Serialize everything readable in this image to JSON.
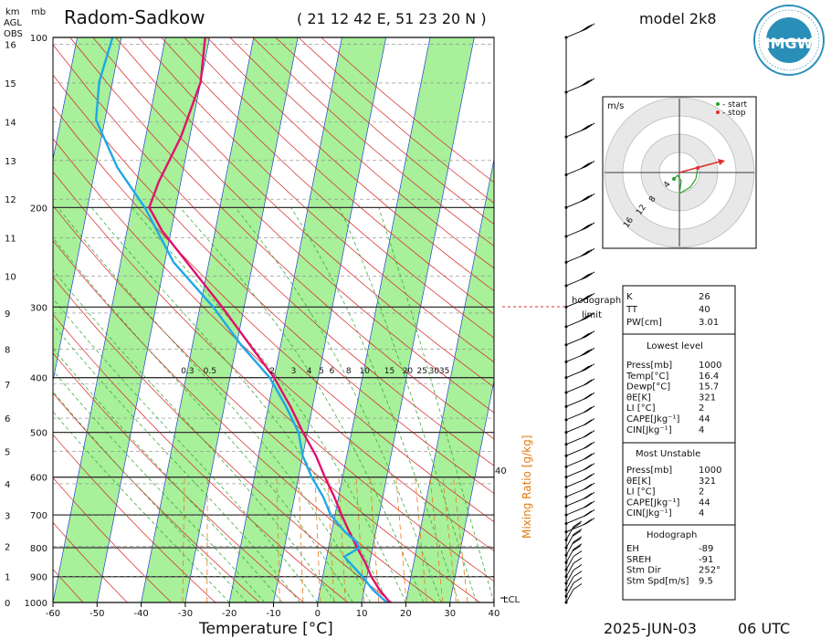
{
  "header": {
    "station": "Radom-Sadkow",
    "coords": "( 21 12 42 E, 51 23 20 N )",
    "model": "model 2k8",
    "date": "2025-JUN-03",
    "time": "06 UTC",
    "logo_text": "IMGW"
  },
  "left_axis": {
    "km_label": "km",
    "mb_label": "mb",
    "agl_label": "AGL",
    "obs_label": "OBS",
    "km_ticks": [
      "16",
      "15",
      "14",
      "13",
      "12",
      "11",
      "10",
      "9",
      "8",
      "7",
      "6",
      "5",
      "4",
      "3",
      "2",
      "1",
      "0"
    ],
    "pressure_ticks": [
      "100",
      "200",
      "300",
      "400",
      "500",
      "600",
      "700",
      "800",
      "900",
      "1000"
    ]
  },
  "x_axis": {
    "label": "Temperature [°C]",
    "ticks": [
      "-60",
      "-50",
      "-40",
      "-30",
      "-20",
      "-10",
      "0",
      "10",
      "20",
      "30",
      "40"
    ]
  },
  "mixing_ratio": {
    "label": "Mixing Ratio [g/kg]",
    "values": [
      "0.3",
      "0.5",
      "2",
      "3",
      "4",
      "5",
      "6",
      "8",
      "10",
      "15",
      "20",
      "25",
      "30",
      "35"
    ],
    "right_value": "40"
  },
  "lcl_label": "LCL",
  "hodograph": {
    "units": "m/s",
    "legend_start": "- start",
    "legend_stop": "- stop",
    "ring_labels": [
      "4",
      "8",
      "12",
      "16"
    ],
    "limit_label_1": "hodograph",
    "limit_label_2": "limit"
  },
  "indices": {
    "top": [
      {
        "name": "K",
        "value": "26"
      },
      {
        "name": "TT",
        "value": "40"
      },
      {
        "name": "PW[cm]",
        "value": "3.01"
      }
    ],
    "lowest_title": "Lowest level",
    "lowest": [
      {
        "name": "Press[mb]",
        "value": "1000"
      },
      {
        "name": "Temp[°C]",
        "value": "16.4"
      },
      {
        "name": "Dewp[°C]",
        "value": "15.7"
      },
      {
        "name": "θE[K]",
        "value": "321"
      },
      {
        "name": "LI [°C]",
        "value": "2"
      },
      {
        "name": "CAPE[Jkg⁻¹]",
        "value": "44"
      },
      {
        "name": "CIN[Jkg⁻¹]",
        "value": "4"
      }
    ],
    "unstable_title": "Most Unstable",
    "unstable": [
      {
        "name": "Press[mb]",
        "value": "1000"
      },
      {
        "name": "θE[K]",
        "value": "321"
      },
      {
        "name": "LI [°C]",
        "value": "2"
      },
      {
        "name": "CAPE[Jkg⁻¹]",
        "value": "44"
      },
      {
        "name": "CIN[Jkg⁻¹]",
        "value": "4"
      }
    ],
    "hodo_title": "Hodograph",
    "hodo": [
      {
        "name": "EH",
        "value": "-89"
      },
      {
        "name": "SREH",
        "value": "-91"
      },
      {
        "name": "Stm Dir",
        "value": "252°"
      },
      {
        "name": "Stm Spd[m/s]",
        "value": "9.5"
      }
    ]
  },
  "colors": {
    "temperature": "#e0106e",
    "dewpoint": "#1fa8e8",
    "green_band": "#a8f09a",
    "dry_adiabat": "#d82020",
    "moist_adiabat": "#2aa02a",
    "mixing_ratio": "#ee7a20",
    "isotherm": "#2040d0"
  },
  "chart_data": {
    "type": "line",
    "xlabel": "Temperature [°C]",
    "ylabel": "mb",
    "xlim": [
      -60,
      40
    ],
    "ylim": [
      1000,
      100
    ],
    "series": [
      {
        "name": "temperature",
        "points": [
          [
            1000,
            16.4
          ],
          [
            950,
            13.5
          ],
          [
            900,
            11
          ],
          [
            850,
            9
          ],
          [
            800,
            6.5
          ],
          [
            750,
            4
          ],
          [
            700,
            1.5
          ],
          [
            650,
            -1
          ],
          [
            600,
            -4
          ],
          [
            550,
            -7
          ],
          [
            500,
            -11
          ],
          [
            450,
            -15
          ],
          [
            400,
            -20
          ],
          [
            350,
            -27
          ],
          [
            300,
            -35
          ],
          [
            250,
            -45
          ],
          [
            220,
            -52
          ],
          [
            200,
            -56
          ],
          [
            180,
            -55
          ],
          [
            150,
            -52
          ],
          [
            120,
            -50
          ],
          [
            100,
            -51
          ]
        ]
      },
      {
        "name": "dewpoint",
        "points": [
          [
            1000,
            15.7
          ],
          [
            950,
            12
          ],
          [
            900,
            9
          ],
          [
            830,
            4
          ],
          [
            800,
            7
          ],
          [
            780,
            6
          ],
          [
            750,
            3
          ],
          [
            700,
            -1
          ],
          [
            650,
            -3.5
          ],
          [
            600,
            -7
          ],
          [
            550,
            -10
          ],
          [
            500,
            -12
          ],
          [
            450,
            -16
          ],
          [
            400,
            -21
          ],
          [
            350,
            -29
          ],
          [
            300,
            -37
          ],
          [
            250,
            -48
          ],
          [
            200,
            -57
          ],
          [
            170,
            -65
          ],
          [
            140,
            -72
          ],
          [
            120,
            -73
          ],
          [
            100,
            -72
          ]
        ]
      }
    ]
  }
}
